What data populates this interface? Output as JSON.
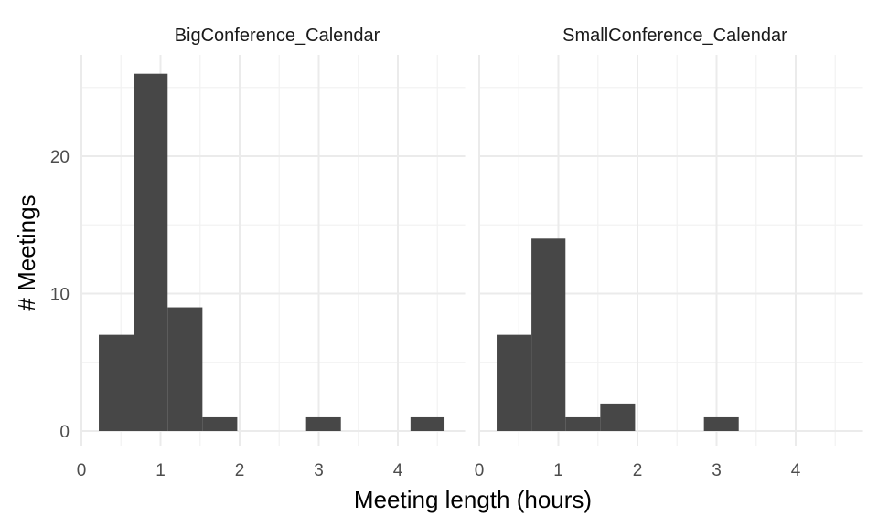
{
  "chart_data": {
    "type": "bar",
    "subtype": "histogram",
    "bin_width": 0.4375,
    "xlabel": "Meeting length (hours)",
    "ylabel": "# Meetings",
    "xlim": [
      0,
      4.85
    ],
    "ylim": [
      0,
      27.5
    ],
    "x_ticks": [
      0,
      1,
      2,
      3,
      4
    ],
    "y_ticks": [
      0,
      10,
      20
    ],
    "grid": true,
    "panels": [
      {
        "title": "BigConference_Calendar",
        "bars": [
          {
            "x0": 0.22,
            "x1": 0.66,
            "value": 7
          },
          {
            "x0": 0.66,
            "x1": 1.09,
            "value": 26
          },
          {
            "x0": 1.09,
            "x1": 1.53,
            "value": 9
          },
          {
            "x0": 1.53,
            "x1": 1.97,
            "value": 1
          },
          {
            "x0": 1.97,
            "x1": 2.41,
            "value": 0
          },
          {
            "x0": 2.41,
            "x1": 2.84,
            "value": 0
          },
          {
            "x0": 2.84,
            "x1": 3.28,
            "value": 1
          },
          {
            "x0": 3.28,
            "x1": 3.72,
            "value": 0
          },
          {
            "x0": 3.72,
            "x1": 4.16,
            "value": 0
          },
          {
            "x0": 4.16,
            "x1": 4.59,
            "value": 1
          }
        ]
      },
      {
        "title": "SmallConference_Calendar",
        "bars": [
          {
            "x0": 0.22,
            "x1": 0.66,
            "value": 7
          },
          {
            "x0": 0.66,
            "x1": 1.09,
            "value": 14
          },
          {
            "x0": 1.09,
            "x1": 1.53,
            "value": 1
          },
          {
            "x0": 1.53,
            "x1": 1.97,
            "value": 2
          },
          {
            "x0": 1.97,
            "x1": 2.41,
            "value": 0
          },
          {
            "x0": 2.41,
            "x1": 2.84,
            "value": 0
          },
          {
            "x0": 2.84,
            "x1": 3.28,
            "value": 1
          },
          {
            "x0": 3.28,
            "x1": 3.72,
            "value": 0
          },
          {
            "x0": 3.72,
            "x1": 4.16,
            "value": 0
          },
          {
            "x0": 4.16,
            "x1": 4.59,
            "value": 0
          }
        ]
      }
    ],
    "bar_color": "#474747"
  }
}
